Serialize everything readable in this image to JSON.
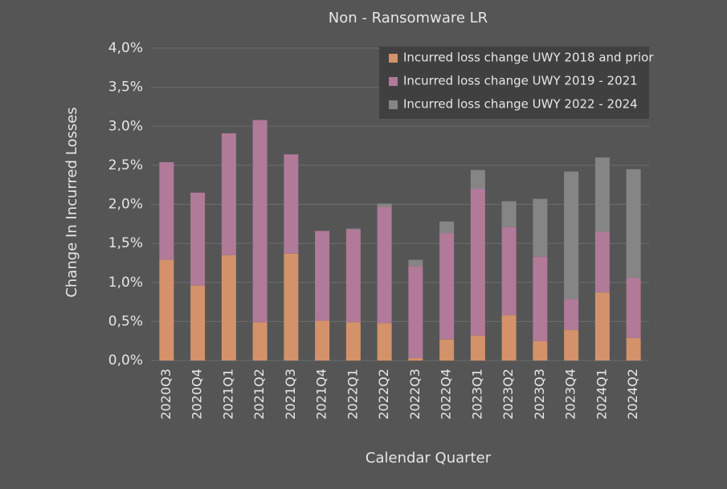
{
  "chart_data": {
    "type": "stacked_bar",
    "title": "Non - Ransomware LR",
    "x_label": "Calendar Quarter",
    "y_label": "Change In Incurred Losses",
    "categories": [
      "2020Q3",
      "2020Q4",
      "2021Q1",
      "2021Q2",
      "2021Q3",
      "2021Q4",
      "2022Q1",
      "2022Q2",
      "2022Q3",
      "2022Q4",
      "2023Q1",
      "2023Q2",
      "2023Q3",
      "2023Q4",
      "2024Q1",
      "2024Q2"
    ],
    "series": [
      {
        "name": "Incurred loss change UWY 2018 and prior",
        "color": "#d4926a",
        "values": [
          1.29,
          0.96,
          1.35,
          0.49,
          1.37,
          0.51,
          0.49,
          0.48,
          0.03,
          0.27,
          0.32,
          0.58,
          0.25,
          0.39,
          0.87,
          0.29
        ]
      },
      {
        "name": "Incurred loss change UWY 2019 - 2021",
        "color": "#b07a98",
        "values": [
          1.25,
          1.19,
          1.56,
          2.59,
          1.27,
          1.15,
          1.19,
          1.49,
          1.18,
          1.36,
          1.88,
          1.13,
          1.08,
          0.4,
          0.78,
          0.77
        ]
      },
      {
        "name": "Incurred loss change UWY 2022 - 2024",
        "color": "#858585",
        "values": [
          0,
          0,
          0,
          0,
          0,
          0,
          0.01,
          0.04,
          0.08,
          0.15,
          0.24,
          0.33,
          0.74,
          1.63,
          0.95,
          1.39
        ]
      }
    ],
    "ylim": [
      0,
      4
    ],
    "yticks": [
      {
        "value": 0,
        "label": "0,0%"
      },
      {
        "value": 0.5,
        "label": "0,5%"
      },
      {
        "value": 1,
        "label": "1,0%"
      },
      {
        "value": 1.5,
        "label": "1,5%"
      },
      {
        "value": 2,
        "label": "2,0%"
      },
      {
        "value": 2.5,
        "label": "2,5%"
      },
      {
        "value": 3,
        "label": "3.0%"
      },
      {
        "value": 3.5,
        "label": "3,5%"
      },
      {
        "value": 4,
        "label": "4,0%"
      }
    ],
    "grid": true,
    "legend": "top-right"
  }
}
